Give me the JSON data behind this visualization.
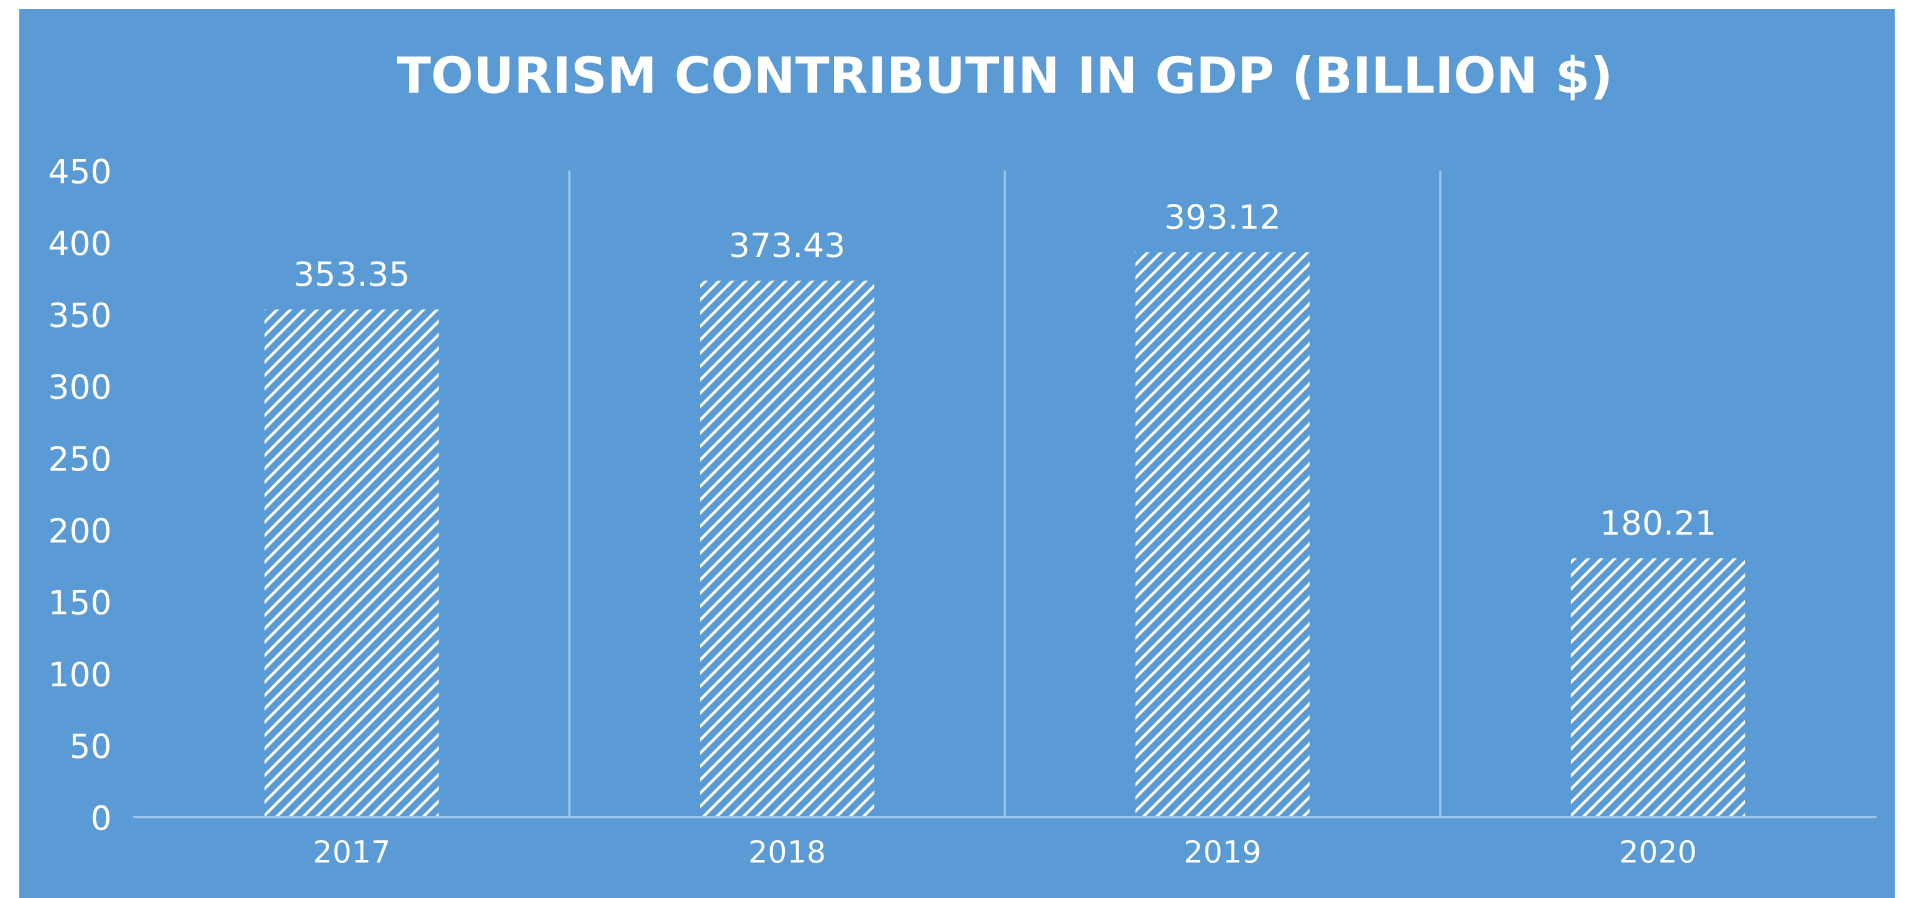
{
  "chart_data": {
    "type": "bar",
    "title": "TOURISM CONTRIBUTIN IN GDP (BILLION $)",
    "categories": [
      "2017",
      "2018",
      "2019",
      "2020"
    ],
    "values": [
      353.35,
      373.43,
      393.12,
      180.21
    ],
    "color": "#ffffff",
    "ylim": [
      0,
      450
    ],
    "yticks": [
      0,
      50,
      100,
      150,
      200,
      250,
      300,
      350,
      400,
      450
    ],
    "grid": "x",
    "data_labels": true
  }
}
